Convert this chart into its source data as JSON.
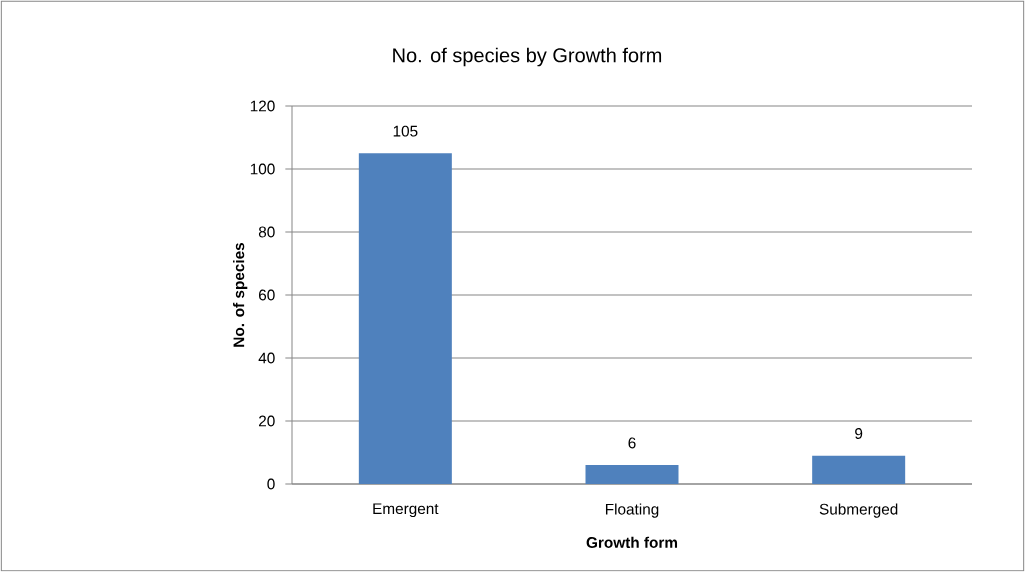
{
  "chart_data": {
    "type": "bar",
    "title": "No. of species by Growth form",
    "xlabel": "Growth form",
    "ylabel": "No. of species",
    "categories": [
      "Emergent",
      "Floating",
      "Submerged"
    ],
    "values": [
      105,
      6,
      9
    ],
    "color": "#4f81bd",
    "data_labels": true,
    "ylim": [
      0,
      120
    ],
    "yticks": [
      0,
      20,
      40,
      60,
      80,
      100,
      120
    ],
    "grid": "y"
  }
}
